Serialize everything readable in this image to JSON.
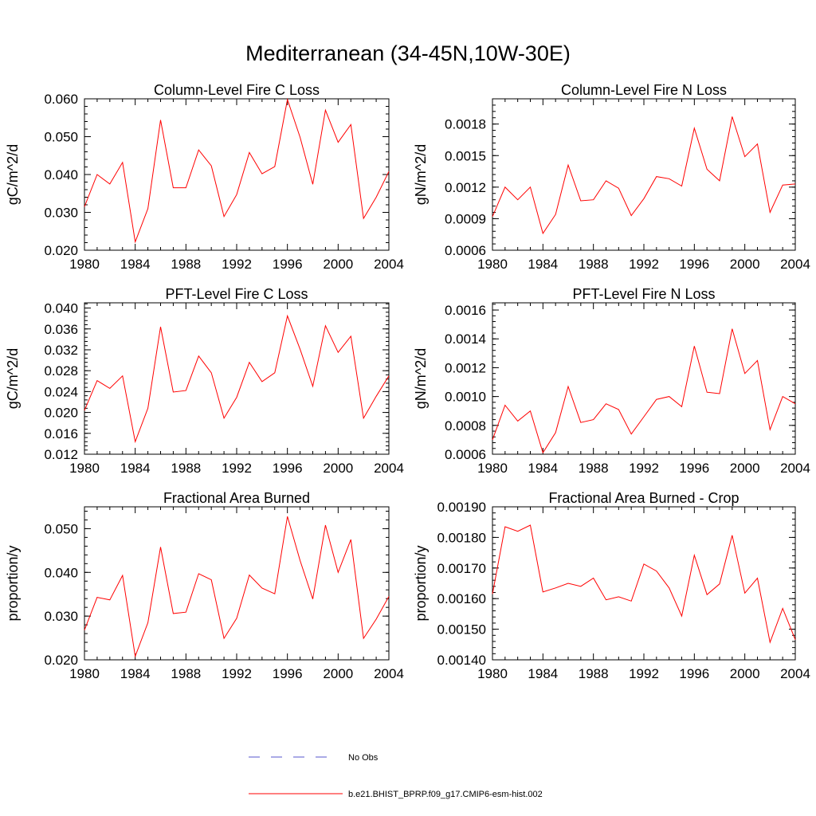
{
  "figure_title": "Mediterranean (34-45N,10W-30E)",
  "colors": {
    "series": "#ff0000",
    "no_obs": "#5555cc",
    "axis": "#000000"
  },
  "chart_data": [
    {
      "type": "line",
      "title": "Column-Level Fire C Loss",
      "ylabel": "gC/m^2/d",
      "xlim": [
        1980,
        2004
      ],
      "ylim": [
        0.02,
        0.06
      ],
      "x_ticks": [
        "1980",
        "1984",
        "1988",
        "1992",
        "1996",
        "2000",
        "2004"
      ],
      "y_ticks": [
        "0.020",
        "0.030",
        "0.040",
        "0.050",
        "0.060"
      ],
      "series": [
        {
          "name": "b.e21.BHIST_BPRP.f09_g17.CMIP6-esm-hist.002",
          "x": [
            1980,
            1981,
            1982,
            1983,
            1984,
            1985,
            1986,
            1987,
            1988,
            1989,
            1990,
            1991,
            1992,
            1993,
            1994,
            1995,
            1996,
            1997,
            1998,
            1999,
            2000,
            2001,
            2002,
            2003,
            2004
          ],
          "values": [
            0.0315,
            0.04,
            0.0375,
            0.0432,
            0.0222,
            0.031,
            0.0544,
            0.0365,
            0.0365,
            0.0465,
            0.0423,
            0.0289,
            0.0347,
            0.0458,
            0.0402,
            0.0421,
            0.0598,
            0.0498,
            0.0374,
            0.057,
            0.0485,
            0.0532,
            0.0284,
            0.034,
            0.0408
          ]
        }
      ]
    },
    {
      "type": "line",
      "title": "Column-Level Fire N Loss",
      "ylabel": "gN/m^2/d",
      "xlim": [
        1980,
        2004
      ],
      "ylim": [
        0.0006,
        0.00204
      ],
      "x_ticks": [
        "1980",
        "1984",
        "1988",
        "1992",
        "1996",
        "2000",
        "2004"
      ],
      "y_ticks": [
        "0.0006",
        "0.0009",
        "0.0012",
        "0.0015",
        "0.0018"
      ],
      "series": [
        {
          "name": "b.e21.BHIST_BPRP.f09_g17.CMIP6-esm-hist.002",
          "x": [
            1980,
            1981,
            1982,
            1983,
            1984,
            1985,
            1986,
            1987,
            1988,
            1989,
            1990,
            1991,
            1992,
            1993,
            1994,
            1995,
            1996,
            1997,
            1998,
            1999,
            2000,
            2001,
            2002,
            2003,
            2004
          ],
          "values": [
            0.00092,
            0.0012,
            0.00108,
            0.0012,
            0.00076,
            0.00094,
            0.00141,
            0.00107,
            0.00108,
            0.00126,
            0.00119,
            0.00093,
            0.00109,
            0.0013,
            0.00128,
            0.00121,
            0.00176,
            0.00137,
            0.00126,
            0.00187,
            0.00149,
            0.00161,
            0.00096,
            0.00122,
            0.00123
          ]
        }
      ]
    },
    {
      "type": "line",
      "title": "PFT-Level Fire C Loss",
      "ylabel": "gC/m^2/d",
      "xlim": [
        1980,
        2004
      ],
      "ylim": [
        0.012,
        0.041
      ],
      "x_ticks": [
        "1980",
        "1984",
        "1988",
        "1992",
        "1996",
        "2000",
        "2004"
      ],
      "y_ticks": [
        "0.012",
        "0.016",
        "0.020",
        "0.024",
        "0.028",
        "0.032",
        "0.036",
        "0.040"
      ],
      "series": [
        {
          "name": "b.e21.BHIST_BPRP.f09_g17.CMIP6-esm-hist.002",
          "x": [
            1980,
            1981,
            1982,
            1983,
            1984,
            1985,
            1986,
            1987,
            1988,
            1989,
            1990,
            1991,
            1992,
            1993,
            1994,
            1995,
            1996,
            1997,
            1998,
            1999,
            2000,
            2001,
            2002,
            2003,
            2004
          ],
          "values": [
            0.0204,
            0.0261,
            0.0246,
            0.027,
            0.0144,
            0.0208,
            0.0364,
            0.0239,
            0.0242,
            0.0308,
            0.0276,
            0.0189,
            0.0229,
            0.0296,
            0.0259,
            0.0276,
            0.0385,
            0.0321,
            0.025,
            0.0366,
            0.0315,
            0.0346,
            0.0189,
            0.0231,
            0.027
          ]
        }
      ]
    },
    {
      "type": "line",
      "title": "PFT-Level Fire N Loss",
      "ylabel": "gN/m^2/d",
      "xlim": [
        1980,
        2004
      ],
      "ylim": [
        0.0006,
        0.00165
      ],
      "x_ticks": [
        "1980",
        "1984",
        "1988",
        "1992",
        "1996",
        "2000",
        "2004"
      ],
      "y_ticks": [
        "0.0006",
        "0.0008",
        "0.0010",
        "0.0012",
        "0.0014",
        "0.0016"
      ],
      "series": [
        {
          "name": "b.e21.BHIST_BPRP.f09_g17.CMIP6-esm-hist.002",
          "x": [
            1980,
            1981,
            1982,
            1983,
            1984,
            1985,
            1986,
            1987,
            1988,
            1989,
            1990,
            1991,
            1992,
            1993,
            1994,
            1995,
            1996,
            1997,
            1998,
            1999,
            2000,
            2001,
            2002,
            2003,
            2004
          ],
          "values": [
            0.0007,
            0.00094,
            0.00083,
            0.0009,
            0.00061,
            0.00075,
            0.00107,
            0.00082,
            0.00084,
            0.00095,
            0.00091,
            0.00074,
            0.00086,
            0.00098,
            0.001,
            0.00093,
            0.00135,
            0.00103,
            0.00102,
            0.00147,
            0.00116,
            0.00125,
            0.00077,
            0.001,
            0.00095
          ]
        }
      ]
    },
    {
      "type": "line",
      "title": "Fractional Area Burned",
      "ylabel": "proportion/y",
      "xlim": [
        1980,
        2004
      ],
      "ylim": [
        0.02,
        0.055
      ],
      "x_ticks": [
        "1980",
        "1984",
        "1988",
        "1992",
        "1996",
        "2000",
        "2004"
      ],
      "y_ticks": [
        "0.020",
        "0.030",
        "0.040",
        "0.050"
      ],
      "series": [
        {
          "name": "b.e21.BHIST_BPRP.f09_g17.CMIP6-esm-hist.002",
          "x": [
            1980,
            1981,
            1982,
            1983,
            1984,
            1985,
            1986,
            1987,
            1988,
            1989,
            1990,
            1991,
            1992,
            1993,
            1994,
            1995,
            1996,
            1997,
            1998,
            1999,
            2000,
            2001,
            2002,
            2003,
            2004
          ],
          "values": [
            0.0268,
            0.0343,
            0.0337,
            0.0393,
            0.0208,
            0.0285,
            0.0458,
            0.0306,
            0.0309,
            0.0397,
            0.0383,
            0.0249,
            0.0295,
            0.0394,
            0.0364,
            0.0351,
            0.0528,
            0.0427,
            0.0339,
            0.0508,
            0.04,
            0.0475,
            0.0249,
            0.0293,
            0.0345
          ]
        }
      ]
    },
    {
      "type": "line",
      "title": "Fractional Area Burned - Crop",
      "ylabel": "proportion/y",
      "xlim": [
        1980,
        2004
      ],
      "ylim": [
        0.0014,
        0.0019
      ],
      "x_ticks": [
        "1980",
        "1984",
        "1988",
        "1992",
        "1996",
        "2000",
        "2004"
      ],
      "y_ticks": [
        "0.00140",
        "0.00150",
        "0.00160",
        "0.00170",
        "0.00180",
        "0.00190"
      ],
      "series": [
        {
          "name": "b.e21.BHIST_BPRP.f09_g17.CMIP6-esm-hist.002",
          "x": [
            1980,
            1981,
            1982,
            1983,
            1984,
            1985,
            1986,
            1987,
            1988,
            1989,
            1990,
            1991,
            1992,
            1993,
            1994,
            1995,
            1996,
            1997,
            1998,
            1999,
            2000,
            2001,
            2002,
            2003,
            2004
          ],
          "values": [
            0.001615,
            0.001835,
            0.00182,
            0.00184,
            0.001622,
            0.001635,
            0.00165,
            0.00164,
            0.001667,
            0.001596,
            0.001606,
            0.001592,
            0.001713,
            0.00169,
            0.001635,
            0.001543,
            0.001742,
            0.001613,
            0.001648,
            0.001807,
            0.001618,
            0.001667,
            0.001457,
            0.001568,
            0.001466
          ]
        }
      ]
    }
  ],
  "legend": {
    "no_obs_label": "No Obs",
    "model_label": "b.e21.BHIST_BPRP.f09_g17.CMIP6-esm-hist.002"
  }
}
